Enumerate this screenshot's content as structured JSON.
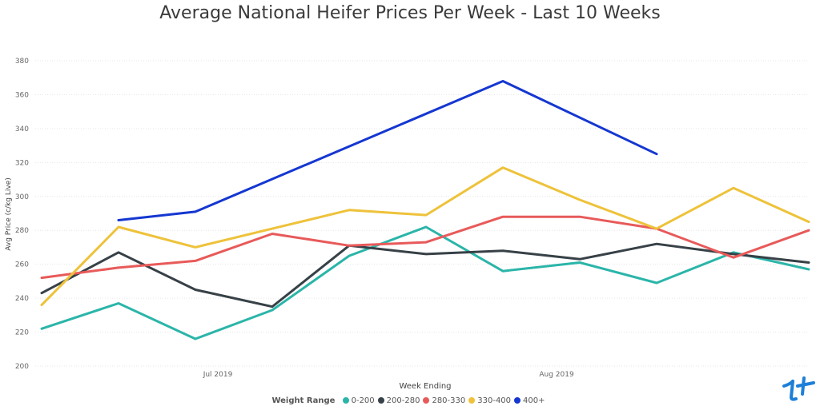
{
  "chart_data": {
    "type": "line",
    "title": "Average National Heifer Prices Per Week - Last 10 Weeks",
    "xlabel": "Week Ending",
    "ylabel": "Avg Price (c/kg Live)",
    "ylim": [
      200,
      380
    ],
    "yticks": [
      200,
      220,
      240,
      260,
      280,
      300,
      320,
      340,
      360,
      380
    ],
    "xticks": [
      "Jul 2019",
      "Aug 2019"
    ],
    "legend_title": "Weight Range",
    "legend_position": "bottom-center",
    "grid": true,
    "series": [
      {
        "name": "0-200",
        "color": "#2bb5a9",
        "values": [
          222,
          237,
          216,
          233,
          265,
          282,
          256,
          261,
          249,
          267,
          257
        ]
      },
      {
        "name": "200-280",
        "color": "#374147",
        "values": [
          243,
          267,
          245,
          235,
          271,
          266,
          268,
          263,
          272,
          266,
          261
        ]
      },
      {
        "name": "280-330",
        "color": "#e85a5a",
        "values": [
          252,
          258,
          262,
          278,
          271,
          273,
          288,
          288,
          281,
          264,
          280
        ]
      },
      {
        "name": "330-400",
        "color": "#eec23a",
        "values": [
          236,
          282,
          270,
          281,
          292,
          289,
          317,
          298,
          281,
          305,
          285
        ]
      },
      {
        "name": "400+",
        "color": "#1537d1",
        "values": [
          null,
          286,
          291,
          null,
          null,
          null,
          368,
          null,
          325,
          null,
          null
        ]
      }
    ]
  }
}
